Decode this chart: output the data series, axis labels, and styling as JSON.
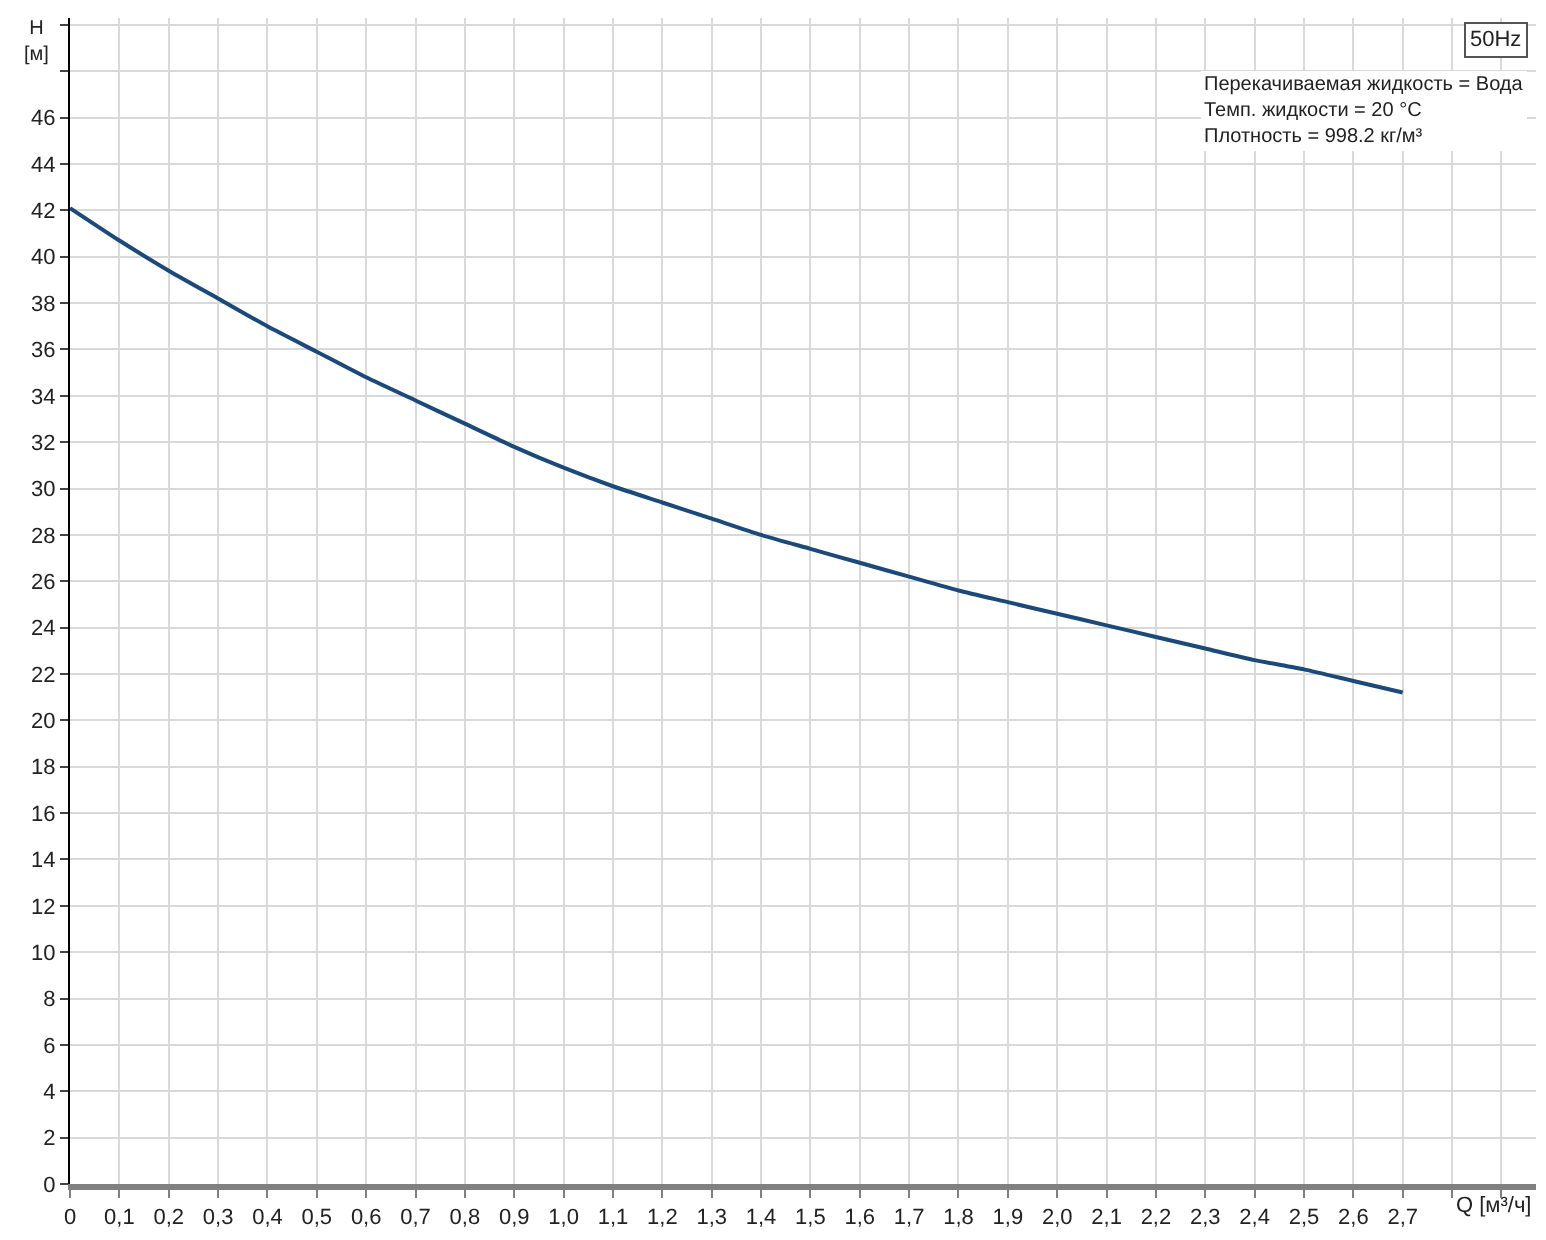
{
  "chart_data": {
    "type": "line",
    "xlabel": "Q [м³/ч]",
    "ylabel": "H [м]",
    "annotations": [
      "50Hz",
      "Перекачиваемая жидкость = Вода",
      "Темп. жидкости = 20 °C",
      "Плотность = 998.2 кг/м³"
    ],
    "x": [
      0,
      0.1,
      0.2,
      0.3,
      0.4,
      0.5,
      0.6,
      0.7,
      0.8,
      0.9,
      1.0,
      1.1,
      1.2,
      1.3,
      1.4,
      1.5,
      1.6,
      1.7,
      1.8,
      1.9,
      2.0,
      2.1,
      2.2,
      2.3,
      2.4,
      2.5,
      2.6,
      2.7
    ],
    "series": [
      {
        "color": "#1b4a7a",
        "values": [
          42.1,
          40.7,
          39.4,
          38.2,
          37.0,
          35.9,
          34.8,
          33.8,
          32.8,
          31.8,
          30.9,
          30.1,
          29.4,
          28.7,
          28.0,
          27.4,
          26.8,
          26.2,
          25.6,
          25.1,
          24.6,
          24.1,
          23.6,
          23.1,
          22.6,
          22.2,
          21.7,
          21.2
        ]
      }
    ],
    "xlim": [
      0,
      2.97
    ],
    "ylim": [
      0,
      50.3
    ],
    "xticks": [
      0,
      {
        "value": 0.1,
        "label": "0,1"
      },
      {
        "value": 0.2,
        "label": "0,2"
      },
      {
        "value": 0.3,
        "label": "0,3"
      },
      {
        "value": 0.4,
        "label": "0,4"
      },
      {
        "value": 0.5,
        "label": "0,5"
      },
      {
        "value": 0.6,
        "label": "0,6"
      },
      {
        "value": 0.7,
        "label": "0,7"
      },
      {
        "value": 0.8,
        "label": "0,8"
      },
      {
        "value": 0.9,
        "label": "0,9"
      },
      {
        "value": 1.0,
        "label": "1,0"
      },
      {
        "value": 1.1,
        "label": "1,1"
      },
      {
        "value": 1.2,
        "label": "1,2"
      },
      {
        "value": 1.3,
        "label": "1,3"
      },
      {
        "value": 1.4,
        "label": "1,4"
      },
      {
        "value": 1.5,
        "label": "1,5"
      },
      {
        "value": 1.6,
        "label": "1,6"
      },
      {
        "value": 1.7,
        "label": "1,7"
      },
      {
        "value": 1.8,
        "label": "1,8"
      },
      {
        "value": 1.9,
        "label": "1,9"
      },
      {
        "value": 2.0,
        "label": "2,0"
      },
      {
        "value": 2.1,
        "label": "2,1"
      },
      {
        "value": 2.2,
        "label": "2,2"
      },
      {
        "value": 2.3,
        "label": "2,3"
      },
      {
        "value": 2.4,
        "label": "2,4"
      },
      {
        "value": 2.5,
        "label": "2,5"
      },
      {
        "value": 2.6,
        "label": "2,6"
      },
      {
        "value": 2.7,
        "label": "2,7"
      },
      {
        "value": 2.8,
        "label": null
      },
      {
        "value": 2.9,
        "label": null
      }
    ],
    "yticks": [
      0,
      2,
      4,
      6,
      8,
      10,
      12,
      14,
      16,
      18,
      20,
      22,
      24,
      26,
      28,
      30,
      32,
      34,
      36,
      38,
      40,
      42,
      44,
      46,
      {
        "value": 48,
        "label": null
      },
      {
        "value": 50,
        "label": null
      }
    ],
    "grid": true,
    "marker": "none",
    "line_style": "solid"
  }
}
